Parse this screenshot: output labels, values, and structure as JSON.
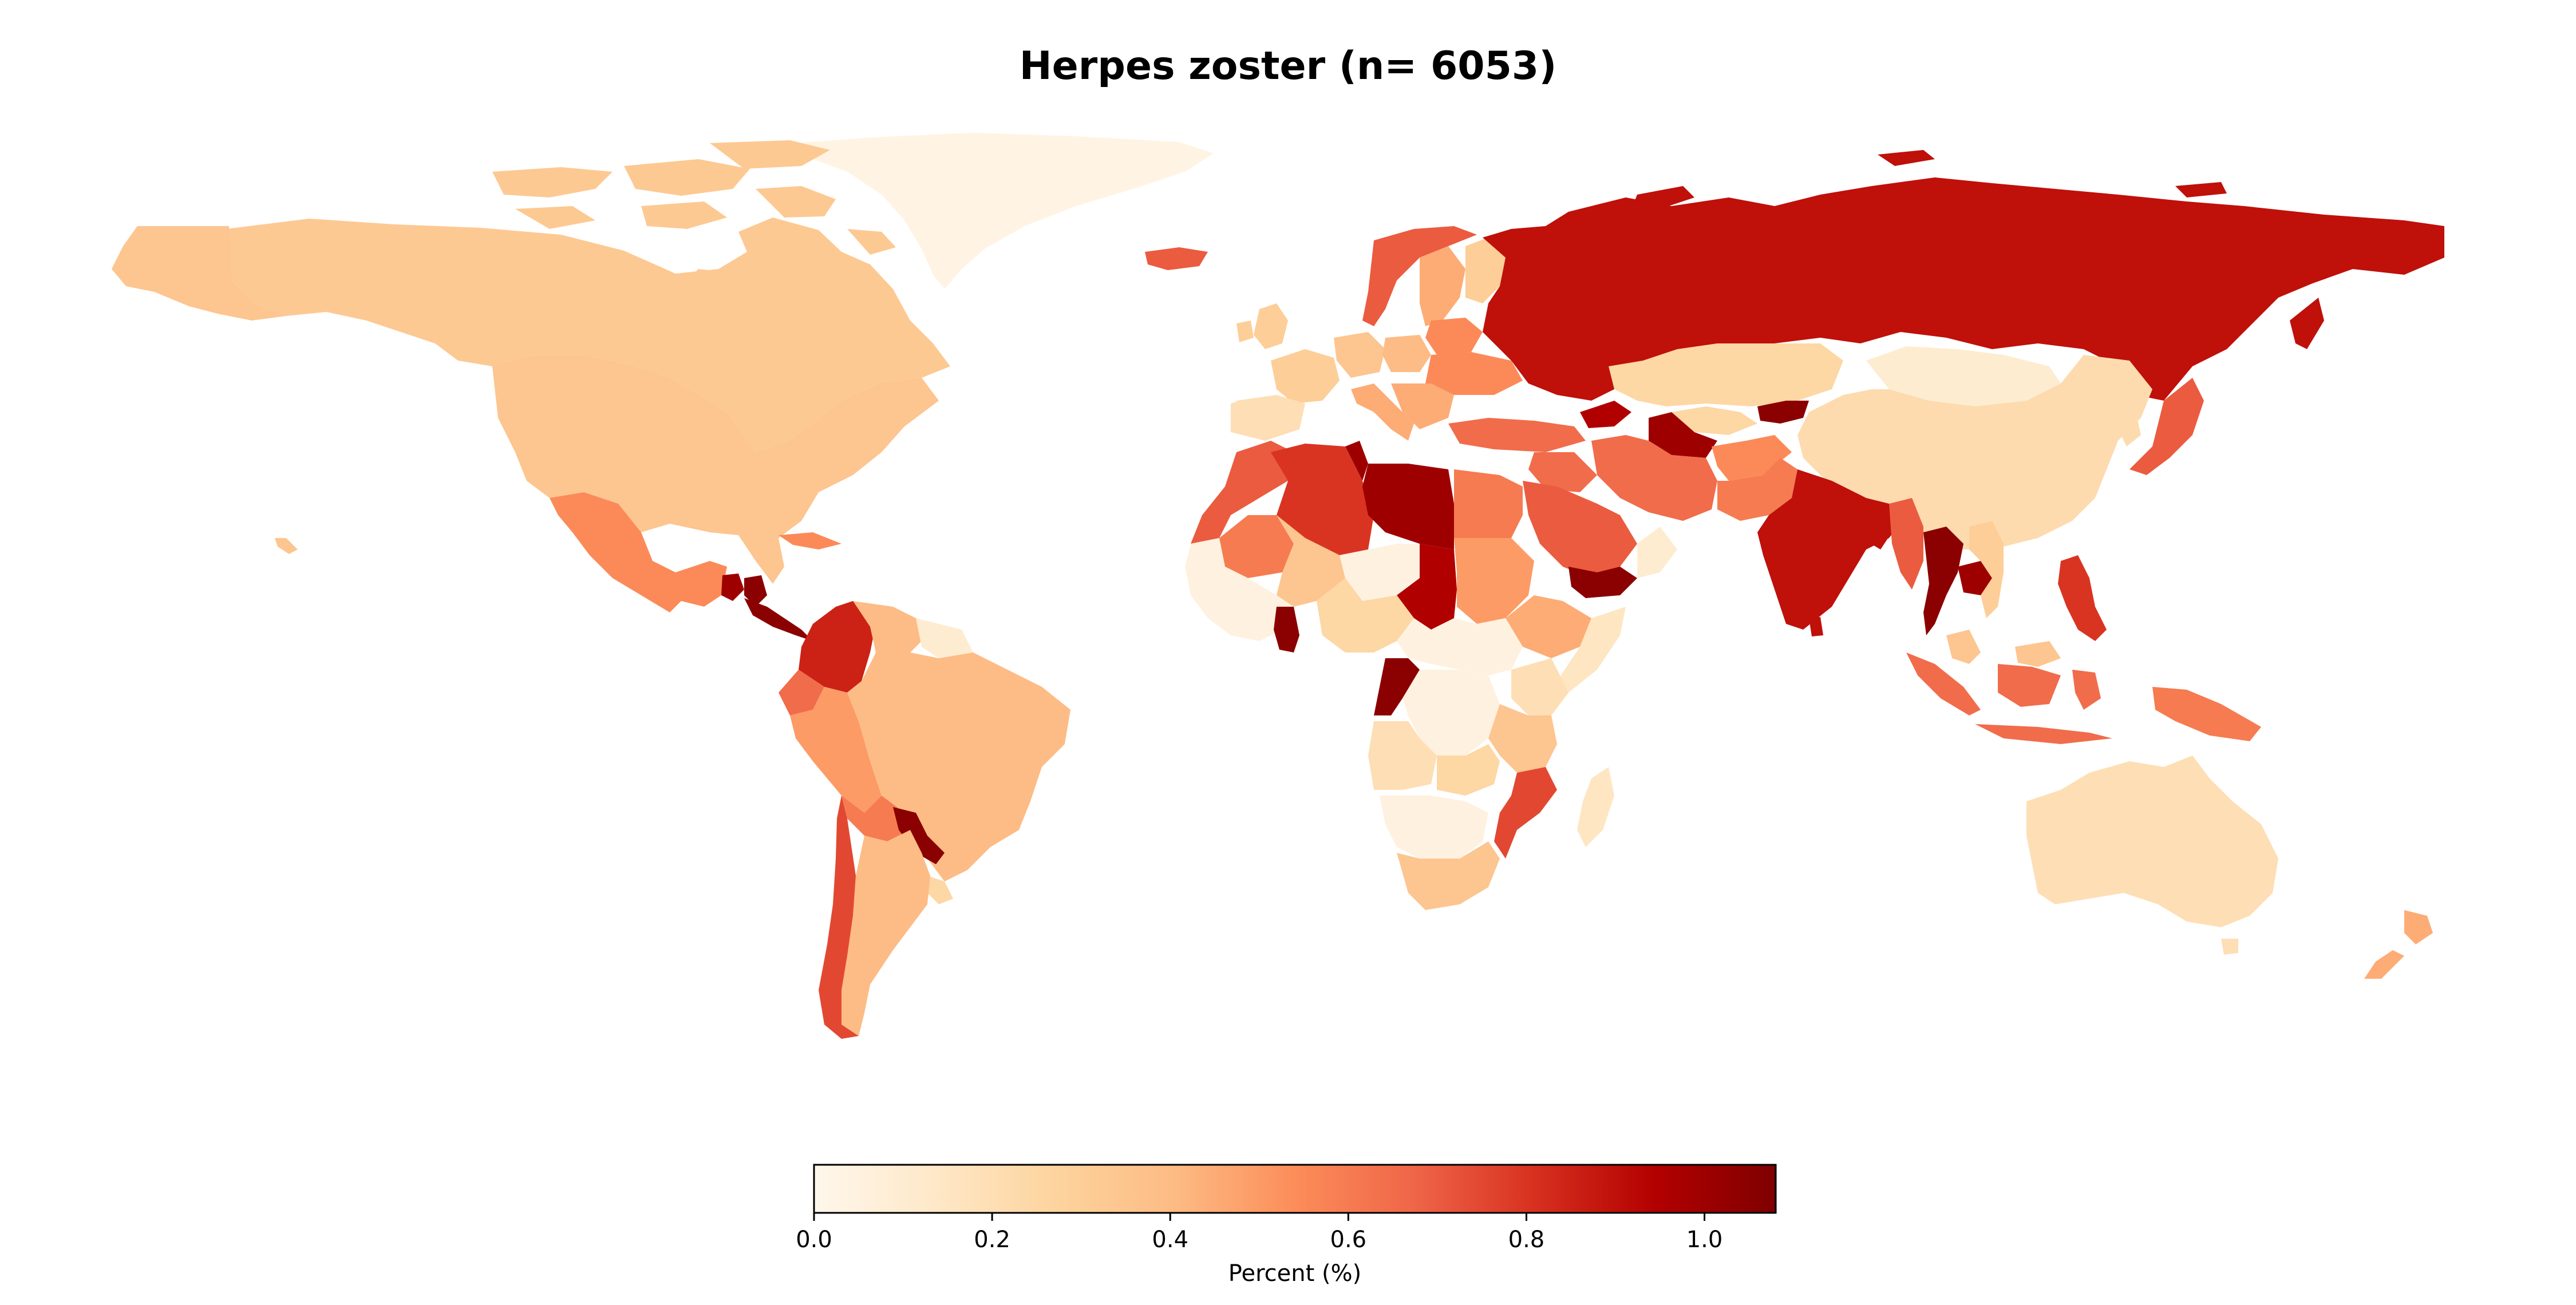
{
  "chart_data": {
    "type": "choropleth",
    "title": "Herpes zoster (n= 6053)",
    "colormap": "OrRd",
    "colorbar": {
      "label": "Percent (%)",
      "range": [
        0.0,
        1.08
      ],
      "ticks": [
        0.0,
        0.2,
        0.4,
        0.6,
        0.8,
        1.0
      ],
      "tick_labels": [
        "0.0",
        "0.2",
        "0.4",
        "0.6",
        "0.8",
        "1.0"
      ],
      "stops": [
        "#fff7ec",
        "#fee8c8",
        "#fdd49e",
        "#fdbb84",
        "#fc8d59",
        "#ef6548",
        "#d7301f",
        "#b30000",
        "#7f0000"
      ],
      "orientation": "horizontal",
      "position": "bottom"
    },
    "regions": [
      {
        "name": "Greenland",
        "value": 0.03
      },
      {
        "name": "Canada",
        "value": 0.33
      },
      {
        "name": "United States",
        "value": 0.35
      },
      {
        "name": "Mexico",
        "value": 0.55
      },
      {
        "name": "Guatemala",
        "value": 1.0
      },
      {
        "name": "Honduras",
        "value": 1.05
      },
      {
        "name": "Colombia",
        "value": 0.85
      },
      {
        "name": "Venezuela",
        "value": 0.4
      },
      {
        "name": "Guyana",
        "value": 0.1
      },
      {
        "name": "Ecuador",
        "value": 0.65
      },
      {
        "name": "Peru",
        "value": 0.5
      },
      {
        "name": "Brazil",
        "value": 0.4
      },
      {
        "name": "Bolivia",
        "value": 0.6
      },
      {
        "name": "Paraguay",
        "value": 1.05
      },
      {
        "name": "Uruguay",
        "value": 0.25
      },
      {
        "name": "Argentina",
        "value": 0.4
      },
      {
        "name": "Chile",
        "value": 0.75
      },
      {
        "name": "Iceland",
        "value": 0.7
      },
      {
        "name": "Norway",
        "value": 0.7
      },
      {
        "name": "Sweden",
        "value": 0.45
      },
      {
        "name": "Finland",
        "value": 0.3
      },
      {
        "name": "United Kingdom",
        "value": 0.3
      },
      {
        "name": "Ireland",
        "value": 0.3
      },
      {
        "name": "France",
        "value": 0.3
      },
      {
        "name": "Spain",
        "value": 0.2
      },
      {
        "name": "Portugal",
        "value": 0.2
      },
      {
        "name": "Germany",
        "value": 0.35
      },
      {
        "name": "Poland",
        "value": 0.4
      },
      {
        "name": "Ukraine",
        "value": 0.55
      },
      {
        "name": "Italy",
        "value": 0.45
      },
      {
        "name": "Turkey",
        "value": 0.65
      },
      {
        "name": "Russia",
        "value": 0.9
      },
      {
        "name": "Kazakhstan",
        "value": 0.25
      },
      {
        "name": "Mongolia",
        "value": 0.1
      },
      {
        "name": "China",
        "value": 0.22
      },
      {
        "name": "Japan",
        "value": 0.7
      },
      {
        "name": "Kyrgyzstan",
        "value": 1.05
      },
      {
        "name": "Georgia",
        "value": 0.95
      },
      {
        "name": "Turkmenistan",
        "value": 1.0
      },
      {
        "name": "Iran",
        "value": 0.65
      },
      {
        "name": "Afghanistan",
        "value": 0.55
      },
      {
        "name": "Pakistan",
        "value": 0.6
      },
      {
        "name": "India",
        "value": 0.9
      },
      {
        "name": "Myanmar",
        "value": 0.7
      },
      {
        "name": "Bangladesh",
        "value": 0.9
      },
      {
        "name": "Thailand",
        "value": 1.05
      },
      {
        "name": "Cambodia",
        "value": 1.0
      },
      {
        "name": "Vietnam",
        "value": 0.3
      },
      {
        "name": "Philippines",
        "value": 0.8
      },
      {
        "name": "Malaysia",
        "value": 0.35
      },
      {
        "name": "Indonesia",
        "value": 0.65
      },
      {
        "name": "Papua New Guinea",
        "value": 0.6
      },
      {
        "name": "Australia",
        "value": 0.2
      },
      {
        "name": "New Zealand",
        "value": 0.45
      },
      {
        "name": "Morocco",
        "value": 0.7
      },
      {
        "name": "Algeria",
        "value": 0.8
      },
      {
        "name": "Libya",
        "value": 1.0
      },
      {
        "name": "Egypt",
        "value": 0.6
      },
      {
        "name": "Mauritania",
        "value": 0.6
      },
      {
        "name": "Mali",
        "value": 0.35
      },
      {
        "name": "Niger",
        "value": 0.05
      },
      {
        "name": "Chad",
        "value": 0.95
      },
      {
        "name": "Sudan",
        "value": 0.5
      },
      {
        "name": "Ethiopia",
        "value": 0.45
      },
      {
        "name": "Somalia",
        "value": 0.15
      },
      {
        "name": "Nigeria",
        "value": 0.25
      },
      {
        "name": "Ghana",
        "value": 1.05
      },
      {
        "name": "Congo",
        "value": 1.05
      },
      {
        "name": "DR Congo",
        "value": 0.05
      },
      {
        "name": "Kenya",
        "value": 0.2
      },
      {
        "name": "Tanzania",
        "value": 0.35
      },
      {
        "name": "Angola",
        "value": 0.2
      },
      {
        "name": "Mozambique",
        "value": 0.75
      },
      {
        "name": "Zambia",
        "value": 0.25
      },
      {
        "name": "Namibia",
        "value": 0.05
      },
      {
        "name": "South Africa",
        "value": 0.35
      },
      {
        "name": "Madagascar",
        "value": 0.15
      },
      {
        "name": "Saudi Arabia",
        "value": 0.7
      },
      {
        "name": "Yemen",
        "value": 1.05
      },
      {
        "name": "Oman",
        "value": 0.1
      }
    ]
  }
}
